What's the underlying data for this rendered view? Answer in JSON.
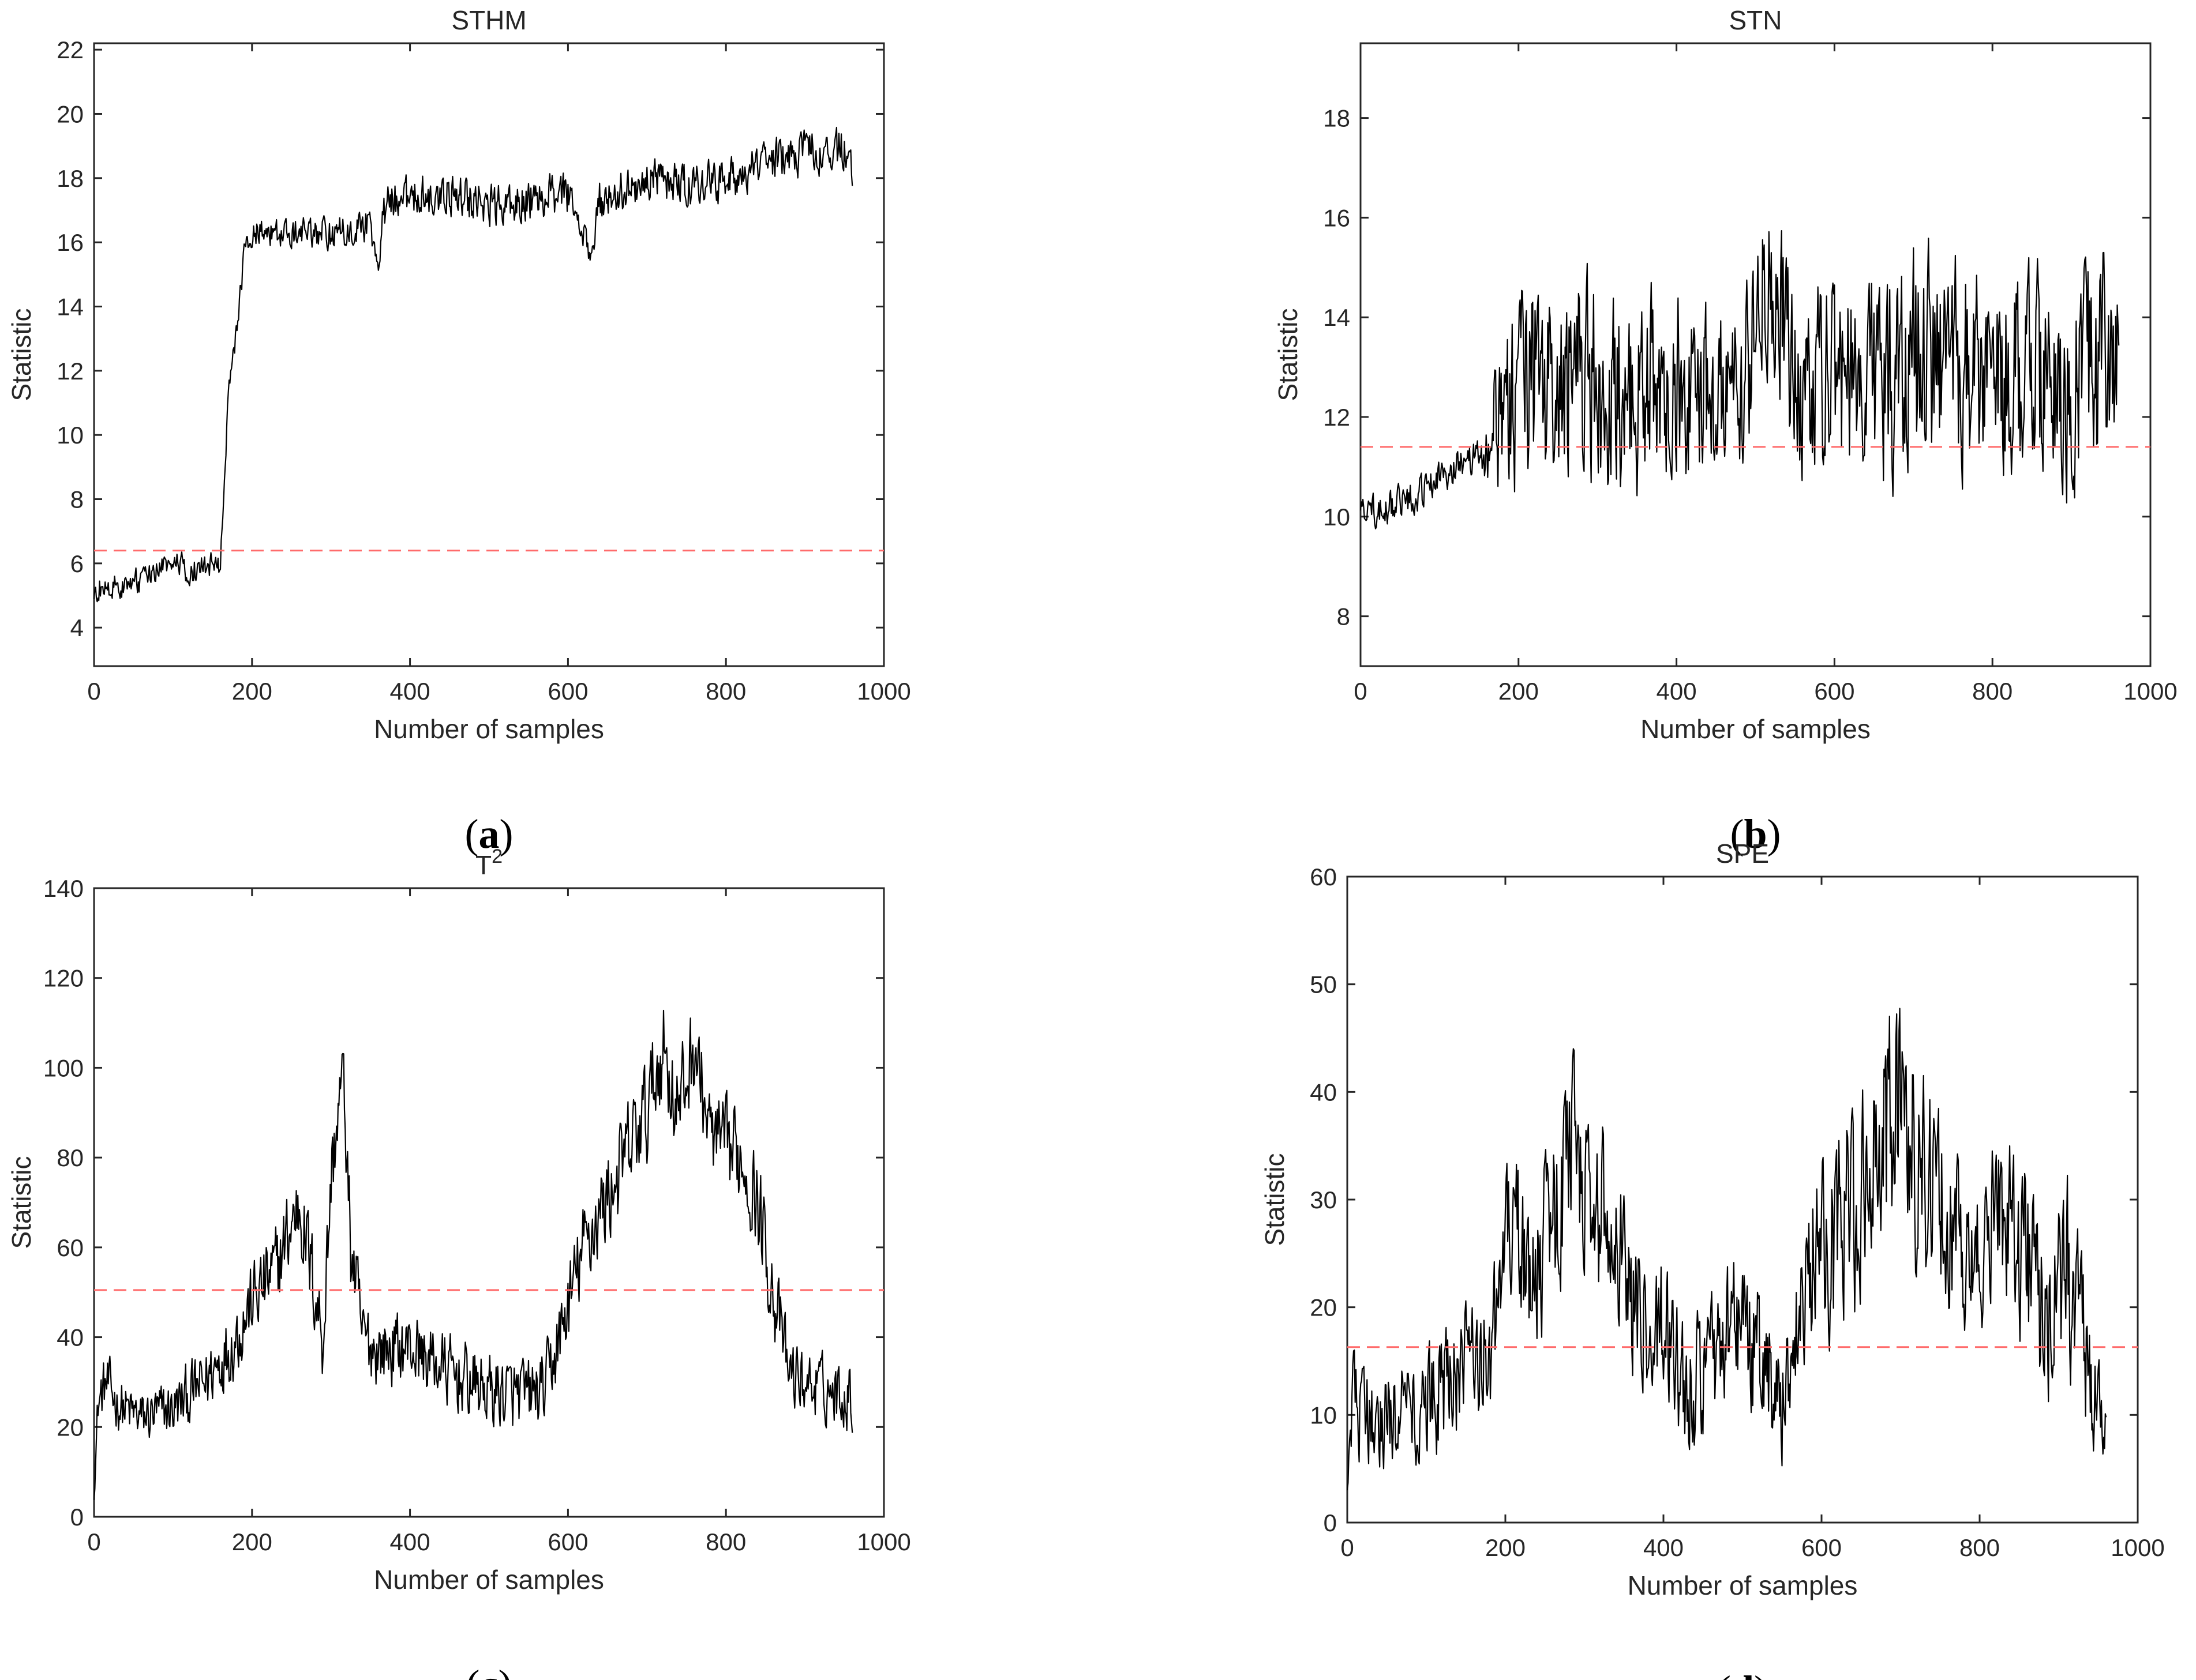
{
  "chart_data": [
    {
      "type": "line",
      "panel": "a",
      "title": "STHM",
      "title_sup": "",
      "xlabel": "Number of samples",
      "ylabel": "Statistic",
      "xlim": [
        0,
        1000
      ],
      "ylim": [
        2.8,
        22.2
      ],
      "xticks": [
        0,
        200,
        400,
        600,
        800,
        1000
      ],
      "yticks": [
        4,
        6,
        8,
        10,
        12,
        14,
        16,
        18,
        20,
        22
      ],
      "threshold": 6.4,
      "threshold_color": "#ff6b6b",
      "series": [
        {
          "name": "STHM",
          "color": "#000000",
          "x": [
            0,
            20,
            40,
            60,
            80,
            100,
            120,
            140,
            160,
            165,
            170,
            180,
            190,
            200,
            250,
            300,
            350,
            360,
            365,
            370,
            400,
            450,
            500,
            550,
            600,
            610,
            620,
            630,
            640,
            650,
            700,
            750,
            800,
            850,
            900,
            950,
            960
          ],
          "y": [
            5.2,
            5.3,
            5.3,
            5.5,
            5.8,
            6.0,
            5.8,
            5.9,
            6.0,
            8.2,
            11.5,
            13.2,
            15.5,
            16.3,
            16.4,
            16.3,
            16.5,
            15.0,
            16.6,
            17.2,
            17.4,
            17.5,
            17.2,
            17.3,
            17.5,
            17.0,
            16.2,
            15.5,
            17.3,
            17.3,
            17.9,
            17.8,
            17.9,
            18.5,
            18.8,
            18.9,
            18.3
          ],
          "noise": [
            0.55,
            0.55,
            0.55,
            0.55,
            0.55,
            0.55,
            0.55,
            0.55,
            0.55,
            0.5,
            0.55,
            0.55,
            0.55,
            0.7,
            0.7,
            0.7,
            0.7,
            0.3,
            0.8,
            0.9,
            0.9,
            0.9,
            0.9,
            0.9,
            0.9,
            0.4,
            0.6,
            0.5,
            0.9,
            0.9,
            0.9,
            0.9,
            0.9,
            0.9,
            0.9,
            0.9,
            0.9
          ]
        }
      ]
    },
    {
      "type": "line",
      "panel": "b",
      "title": "STN",
      "title_sup": "",
      "xlabel": "Number of samples",
      "ylabel": "Statistic",
      "xlim": [
        0,
        1000
      ],
      "ylim": [
        7.0,
        19.5
      ],
      "xticks": [
        0,
        200,
        400,
        600,
        800,
        1000
      ],
      "yticks": [
        8,
        10,
        12,
        14,
        16,
        18
      ],
      "threshold": 11.4,
      "threshold_color": "#ff6b6b",
      "series": [
        {
          "name": "STN",
          "color": "#000000",
          "x": [
            0,
            40,
            80,
            120,
            150,
            160,
            180,
            200,
            250,
            300,
            350,
            400,
            450,
            490,
            510,
            530,
            550,
            600,
            650,
            700,
            750,
            800,
            850,
            900,
            940,
            960
          ],
          "y": [
            10.1,
            10.2,
            10.5,
            11.0,
            11.2,
            11.5,
            12.0,
            12.6,
            12.8,
            12.7,
            12.6,
            12.6,
            12.5,
            12.8,
            14.5,
            14.2,
            12.8,
            12.8,
            12.6,
            13.1,
            12.9,
            12.7,
            12.8,
            12.6,
            13.0,
            12.8
          ],
          "noise": [
            0.45,
            0.45,
            0.45,
            0.45,
            0.5,
            1.2,
            2.2,
            2.6,
            2.8,
            2.8,
            2.8,
            2.4,
            2.2,
            2.3,
            2.6,
            2.6,
            2.4,
            2.6,
            2.6,
            3.0,
            3.0,
            2.9,
            2.9,
            2.8,
            3.0,
            3.0
          ]
        }
      ]
    },
    {
      "type": "line",
      "panel": "c",
      "title": "T",
      "title_sup": "2",
      "xlabel": "Number of samples",
      "ylabel": "Statistic",
      "xlim": [
        0,
        1000
      ],
      "ylim": [
        0,
        140
      ],
      "xticks": [
        0,
        200,
        400,
        600,
        800,
        1000
      ],
      "yticks": [
        0,
        20,
        40,
        60,
        80,
        100,
        120,
        140
      ],
      "threshold": 50.5,
      "threshold_color": "#ff6b6b",
      "series": [
        {
          "name": "T2",
          "color": "#000000",
          "x": [
            0,
            5,
            15,
            30,
            60,
            100,
            140,
            180,
            200,
            230,
            260,
            270,
            290,
            300,
            315,
            325,
            340,
            360,
            400,
            450,
            500,
            540,
            570,
            590,
            620,
            660,
            700,
            720,
            740,
            760,
            780,
            800,
            820,
            840,
            860,
            880,
            900,
            930,
            960
          ],
          "y": [
            5,
            25,
            30,
            25,
            22,
            24,
            30,
            40,
            48,
            55,
            70,
            60,
            40,
            75,
            100,
            60,
            40,
            37,
            38,
            32,
            28,
            27,
            28,
            40,
            60,
            75,
            90,
            105,
            90,
            105,
            85,
            82,
            80,
            70,
            50,
            32,
            30,
            28,
            27
          ],
          "noise": [
            2,
            8,
            9,
            8,
            8,
            9,
            10,
            12,
            12,
            13,
            14,
            14,
            14,
            14,
            10,
            14,
            12,
            11,
            11,
            11,
            11,
            11,
            11,
            12,
            14,
            15,
            16,
            16,
            16,
            14,
            14,
            14,
            14,
            15,
            14,
            10,
            10,
            10,
            10
          ]
        }
      ]
    },
    {
      "type": "line",
      "panel": "d",
      "title": "SPE",
      "title_sup": "",
      "xlabel": "Number of samples",
      "ylabel": "Statistic",
      "xlim": [
        0,
        1000
      ],
      "ylim": [
        0,
        60
      ],
      "xticks": [
        0,
        200,
        400,
        600,
        800,
        1000
      ],
      "yticks": [
        0,
        10,
        20,
        30,
        40,
        50,
        60
      ],
      "threshold": 16.3,
      "threshold_color": "#ff6b6b",
      "series": [
        {
          "name": "SPE",
          "color": "#000000",
          "x": [
            0,
            5,
            20,
            60,
            100,
            140,
            180,
            210,
            230,
            260,
            290,
            320,
            350,
            380,
            400,
            430,
            460,
            490,
            520,
            550,
            570,
            590,
            620,
            650,
            680,
            700,
            720,
            760,
            800,
            830,
            860,
            890,
            910,
            930,
            950,
            960
          ],
          "y": [
            3,
            12,
            10,
            10,
            11,
            13,
            16,
            30,
            22,
            28,
            35,
            30,
            22,
            20,
            18,
            12,
            14,
            18,
            15,
            12,
            20,
            25,
            26,
            30,
            35,
            42,
            33,
            28,
            26,
            30,
            24,
            18,
            22,
            16,
            13,
            10
          ],
          "noise": [
            2,
            7,
            6,
            6,
            7,
            8,
            9,
            10,
            10,
            11,
            12,
            12,
            10,
            9,
            9,
            8,
            8,
            9,
            9,
            8,
            10,
            11,
            12,
            13,
            14,
            14,
            13,
            11,
            11,
            12,
            11,
            11,
            14,
            10,
            8,
            6
          ]
        }
      ]
    }
  ]
}
